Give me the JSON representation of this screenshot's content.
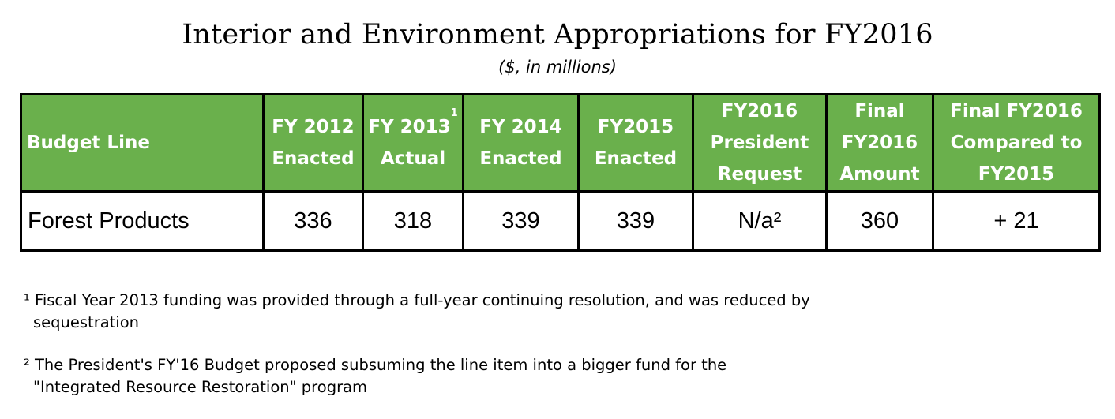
{
  "title": "Interior and Environment Appropriations for FY2016",
  "subtitle": "($, in millions)",
  "table": {
    "headers": {
      "budget_line": "Budget Line",
      "fy2012": [
        "FY 2012",
        "Enacted"
      ],
      "fy2013": [
        "FY 2013",
        "Actual"
      ],
      "fy2013_footnote": "1",
      "fy2014": [
        "FY 2014",
        "Enacted"
      ],
      "fy2015": [
        "FY2015",
        "Enacted"
      ],
      "fy2016_request": [
        "FY2016",
        "President",
        "Request"
      ],
      "final_fy2016": [
        "Final",
        "FY2016",
        "Amount"
      ],
      "compared": [
        "Final FY2016",
        "Compared to",
        "FY2015"
      ]
    },
    "row": {
      "label": "Forest Products",
      "fy2012": "336",
      "fy2013": "318",
      "fy2014": "339",
      "fy2015": "339",
      "fy2016_request": "N/a²",
      "final_fy2016": "360",
      "compared": "+ 21"
    },
    "header_color": "#6ab04c"
  },
  "footnotes": [
    {
      "line1": "¹ Fiscal Year 2013 funding was provided through a full-year continuing resolution, and was reduced by",
      "line2": "sequestration"
    },
    {
      "line1": "² The President's FY'16 Budget proposed subsuming the line item into a bigger fund for the",
      "line2": "\"Integrated Resource Restoration\" program"
    }
  ]
}
